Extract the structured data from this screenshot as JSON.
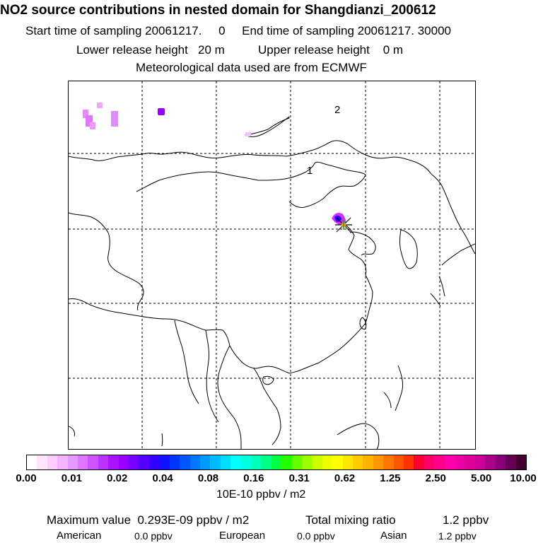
{
  "header": {
    "title": "NO2 source contributions in nested domain for Shangdianzi_200612",
    "sampling_line": "Start time of sampling 20061217.     0     End time of sampling 20061217. 30000",
    "release_line": "Lower release height   20 m          Upper release height    0 m",
    "met_line": "Meteorological data used are from ECMWF"
  },
  "map": {
    "region_labels": [
      "1",
      "2"
    ],
    "receptor_marker": "receptor-star-icon",
    "plume_colors": [
      "#cc33ff",
      "#9900ff",
      "#ee88ff"
    ]
  },
  "colorbar": {
    "colors": [
      "#ffffff",
      "#ffe6ff",
      "#ffccff",
      "#f5b3ff",
      "#e699ff",
      "#dd77ff",
      "#cc55ff",
      "#bb33ff",
      "#aa11ff",
      "#9900ff",
      "#7700ff",
      "#5500ff",
      "#3300ff",
      "#1111ff",
      "#0033ff",
      "#0055ff",
      "#0077ff",
      "#0099ff",
      "#00bbff",
      "#00ddff",
      "#00ffff",
      "#00ffdd",
      "#00ffbb",
      "#00ff88",
      "#00ff44",
      "#22ff00",
      "#66ff00",
      "#99ff00",
      "#ccff00",
      "#eeff00",
      "#ffff00",
      "#ffe600",
      "#ffcc00",
      "#ffb300",
      "#ff9900",
      "#ff7700",
      "#ff5500",
      "#ff3300",
      "#ff0033",
      "#ff0066",
      "#ff0088",
      "#ff00aa",
      "#ee00aa",
      "#dd0099",
      "#cc0099",
      "#aa0088",
      "#880077",
      "#660055",
      "#440033"
    ],
    "ticks": [
      "0.00",
      "0.01",
      "0.02",
      "0.04",
      "0.08",
      "0.16",
      "0.31",
      "0.62",
      "1.25",
      "2.50",
      "5.00",
      "10.00"
    ],
    "unit": "10E-10 ppbv / m2"
  },
  "footer": {
    "max_value": "Maximum value  0.293E-09 ppbv / m2",
    "total_label": "Total mixing ratio",
    "total_value": "1.2 ppbv",
    "regions": [
      {
        "name": "American",
        "value": "0.0 ppbv"
      },
      {
        "name": "European",
        "value": "0.0 ppbv"
      },
      {
        "name": "Asian",
        "value": "1.2 ppbv"
      }
    ]
  }
}
